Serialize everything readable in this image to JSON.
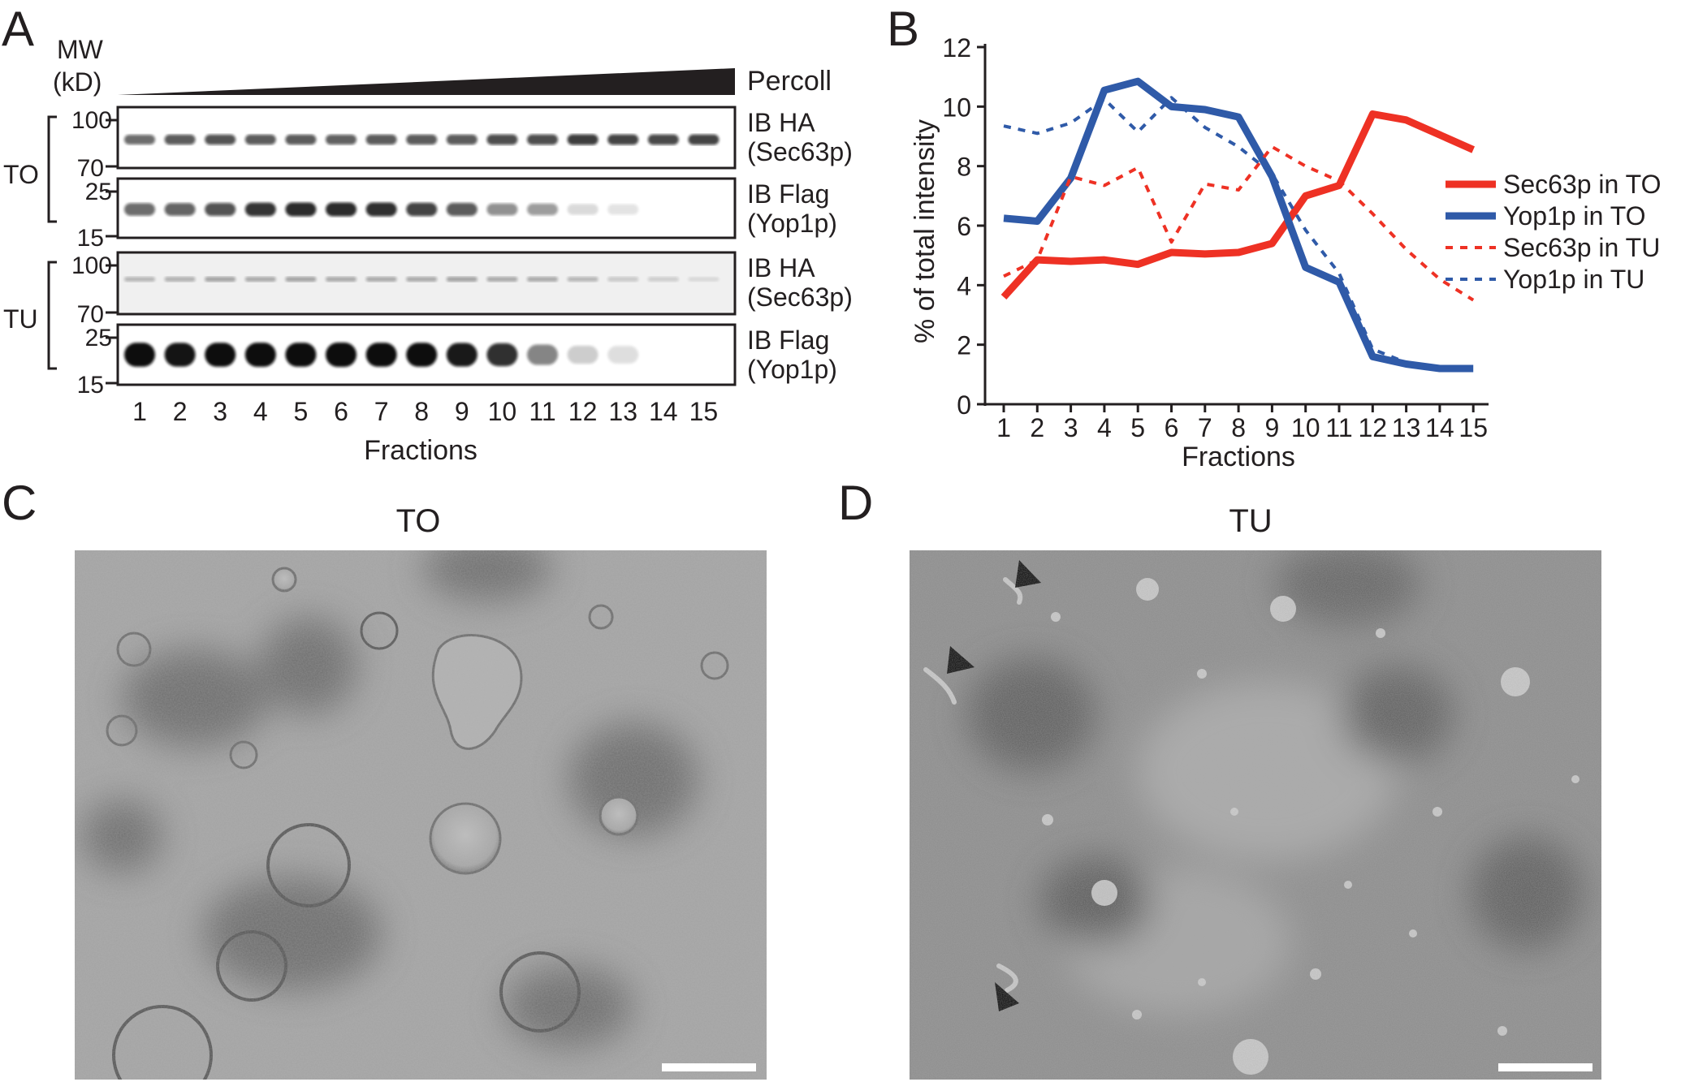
{
  "panels": {
    "a": "A",
    "b": "B",
    "c": "C",
    "d": "D"
  },
  "blot": {
    "mw_label_line1": "MW",
    "mw_label_line2": "(kD)",
    "gradient_label": "Percoll",
    "xlabel": "Fractions",
    "lanes": [
      "1",
      "2",
      "3",
      "4",
      "5",
      "6",
      "7",
      "8",
      "9",
      "10",
      "11",
      "12",
      "13",
      "14",
      "15"
    ],
    "groups": [
      {
        "label": "TO",
        "blots": [
          {
            "marker_top": "100",
            "marker_bottom": "70",
            "antibody": "IB HA",
            "protein": "(Sec63p)",
            "band_strength": [
              0.55,
              0.62,
              0.65,
              0.62,
              0.62,
              0.6,
              0.62,
              0.62,
              0.62,
              0.68,
              0.68,
              0.75,
              0.72,
              0.7,
              0.72
            ]
          },
          {
            "marker_top": "25",
            "marker_bottom": "15",
            "antibody": "IB Flag",
            "protein": "(Yop1p)",
            "band_strength": [
              0.55,
              0.58,
              0.65,
              0.78,
              0.82,
              0.82,
              0.8,
              0.72,
              0.62,
              0.4,
              0.35,
              0.1,
              0.06,
              0.0,
              0.0
            ]
          }
        ]
      },
      {
        "label": "TU",
        "blots": [
          {
            "marker_top": "100",
            "marker_bottom": "70",
            "antibody": "IB HA",
            "protein": "(Sec63p)",
            "band_strength": [
              0.2,
              0.22,
              0.28,
              0.25,
              0.28,
              0.25,
              0.25,
              0.25,
              0.28,
              0.25,
              0.25,
              0.2,
              0.12,
              0.1,
              0.05
            ]
          },
          {
            "marker_top": "25",
            "marker_bottom": "15",
            "antibody": "IB Flag",
            "protein": "(Yop1p)",
            "band_strength": [
              0.95,
              0.92,
              0.95,
              0.98,
              0.95,
              1.0,
              0.95,
              0.95,
              0.9,
              0.8,
              0.45,
              0.15,
              0.08,
              0.0,
              0.0
            ]
          }
        ]
      }
    ]
  },
  "chart_data": {
    "type": "line",
    "categories": [
      "1",
      "2",
      "3",
      "4",
      "5",
      "6",
      "7",
      "8",
      "9",
      "10",
      "11",
      "12",
      "13",
      "14",
      "15"
    ],
    "xlabel": "Fractions",
    "ylabel": "% of total intensity",
    "ylim": [
      0,
      12
    ],
    "yticks": [
      0,
      2,
      4,
      6,
      8,
      10,
      12
    ],
    "grid": false,
    "legend_position": "right",
    "series": [
      {
        "name": "Sec63p in TO",
        "color": "#ee3124",
        "style": "solid",
        "values": [
          3.6,
          4.85,
          4.8,
          4.85,
          4.7,
          5.1,
          5.05,
          5.1,
          5.4,
          7.0,
          7.35,
          9.75,
          9.55,
          9.05,
          8.55
        ]
      },
      {
        "name": "Yop1p in TO",
        "color": "#2f5aa8",
        "style": "solid",
        "values": [
          6.25,
          6.15,
          7.6,
          10.55,
          10.85,
          10.0,
          9.9,
          9.65,
          7.65,
          4.6,
          4.1,
          1.6,
          1.35,
          1.2,
          1.2
        ]
      },
      {
        "name": "Sec63p in TU",
        "color": "#ee3124",
        "style": "dotted",
        "values": [
          4.3,
          4.85,
          7.65,
          7.35,
          7.95,
          5.45,
          7.4,
          7.2,
          8.65,
          8.0,
          7.5,
          6.4,
          5.2,
          4.2,
          3.5
        ]
      },
      {
        "name": "Yop1p in TU",
        "color": "#2f5aa8",
        "style": "dotted",
        "values": [
          9.35,
          9.1,
          9.45,
          10.25,
          9.15,
          10.3,
          9.3,
          8.65,
          7.75,
          5.85,
          4.4,
          1.85,
          1.4,
          1.25,
          1.2
        ]
      }
    ]
  },
  "micrographs": {
    "c_title": "TO",
    "d_title": "TU"
  }
}
